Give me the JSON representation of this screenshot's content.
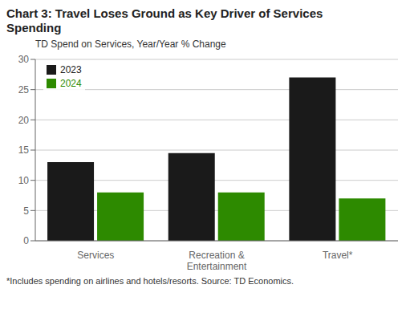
{
  "chart_data": {
    "type": "bar",
    "title": "Chart 3: Travel Loses Ground as Key Driver of Services\nSpending",
    "subtitle": "TD Spend on Services, Year/Year % Change",
    "annotations": [
      "*Includes spending on airlines and hotels/resorts.  Source:  TD Economics."
    ],
    "categories": [
      "Services",
      "Recreation &\nEntertainment",
      "Travel*"
    ],
    "series": [
      {
        "name": "2023",
        "color": "#1a1a1a",
        "values": [
          13.0,
          14.5,
          27.0
        ]
      },
      {
        "name": "2024",
        "color": "#2d8a00",
        "values": [
          8.0,
          8.0,
          7.0
        ]
      }
    ],
    "ylim": [
      0,
      30
    ],
    "yticks": [
      0,
      5,
      10,
      15,
      20,
      25,
      30
    ],
    "grid": true,
    "legend": "upper left"
  }
}
